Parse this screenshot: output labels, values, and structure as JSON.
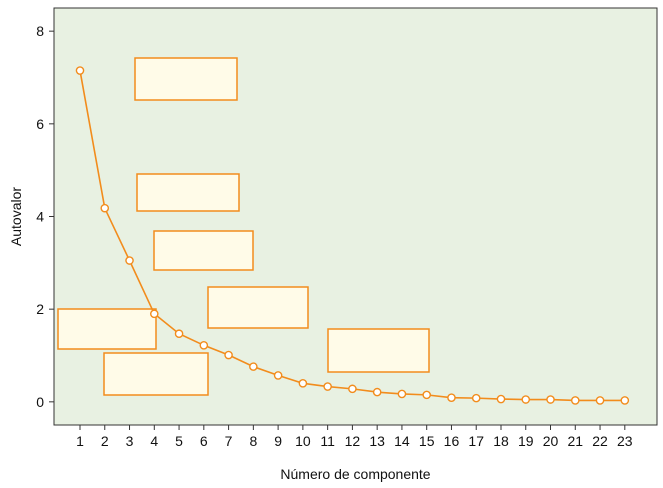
{
  "chart_data": {
    "type": "line",
    "x": [
      1,
      2,
      3,
      4,
      5,
      6,
      7,
      8,
      9,
      10,
      11,
      12,
      13,
      14,
      15,
      16,
      17,
      18,
      19,
      20,
      21,
      22,
      23
    ],
    "series": [
      {
        "values": [
          7.15,
          4.18,
          3.05,
          1.9,
          1.47,
          1.22,
          1.01,
          0.76,
          0.57,
          0.4,
          0.33,
          0.28,
          0.21,
          0.17,
          0.15,
          0.09,
          0.08,
          0.06,
          0.05,
          0.05,
          0.03,
          0.03,
          0.03
        ]
      }
    ],
    "xlabel": "Número de componente",
    "ylabel": "Autovalor",
    "x_ticks": [
      "1",
      "2",
      "3",
      "4",
      "5",
      "6",
      "7",
      "8",
      "9",
      "10",
      "11",
      "12",
      "13",
      "14",
      "15",
      "16",
      "17",
      "18",
      "19",
      "20",
      "21",
      "22",
      "23"
    ],
    "y_ticks": [
      "0",
      "2",
      "4",
      "6",
      "8"
    ],
    "ylim": [
      -0.5,
      8.5
    ],
    "xlim": [
      -0.05,
      24.3
    ],
    "grid": false,
    "legend": "none",
    "annotation_boxes_count": 7,
    "colors": {
      "plot_background": "#e8f1e2",
      "line": "#f28c1c",
      "marker_fill": "#ffffff",
      "box_fill": "#fffbe8",
      "box_stroke": "#f28c1c"
    }
  }
}
